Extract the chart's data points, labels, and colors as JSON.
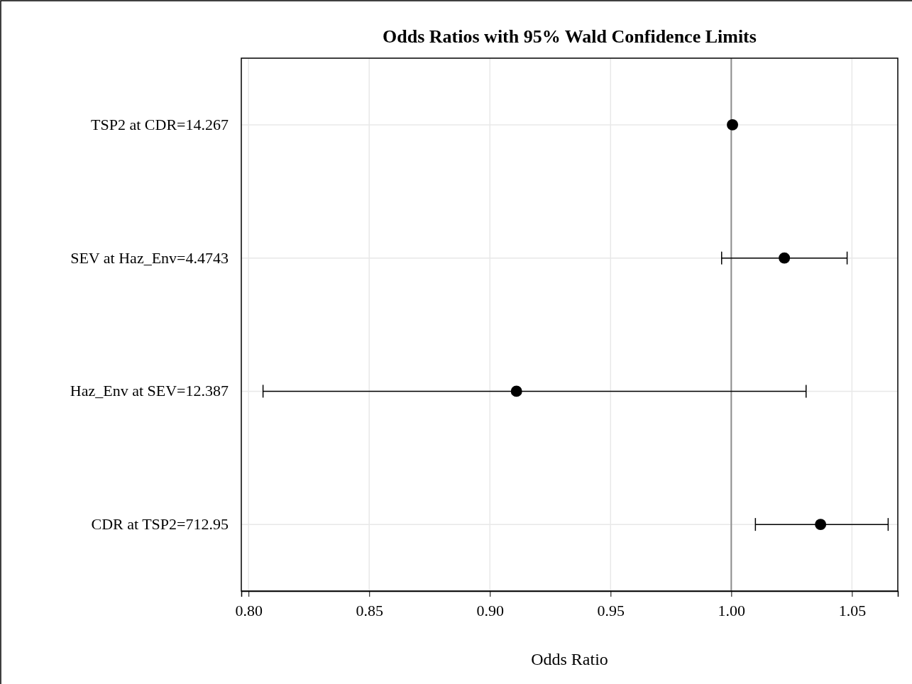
{
  "chart_data": {
    "type": "scatter",
    "orientation": "horizontal",
    "title": "Odds Ratios with 95% Wald Confidence Limits",
    "xlabel": "Odds Ratio",
    "categories": [
      "TSP2 at CDR=14.267",
      "SEV at Haz_Env=4.4743",
      "Haz_Env at SEV=12.387",
      "CDR at TSP2=712.95"
    ],
    "values": [
      1.0005,
      1.022,
      0.911,
      1.037
    ],
    "errors": [
      null,
      [
        0.996,
        1.048
      ],
      [
        0.806,
        1.031
      ],
      [
        1.01,
        1.065
      ]
    ],
    "color": "#000000",
    "marker": "circle",
    "xlim": [
      0.797,
      1.069
    ],
    "xticks": [
      {
        "value": 0.8,
        "label": "0.80"
      },
      {
        "value": 0.85,
        "label": "0.85"
      },
      {
        "value": 0.9,
        "label": "0.90"
      },
      {
        "value": 0.95,
        "label": "0.95"
      },
      {
        "value": 1.0,
        "label": "1.00"
      },
      {
        "value": 1.05,
        "label": "1.05"
      }
    ],
    "ref_lines": [
      {
        "axis": "x",
        "value": 1.0,
        "color": "#8c8c8c"
      }
    ],
    "grid": true
  }
}
